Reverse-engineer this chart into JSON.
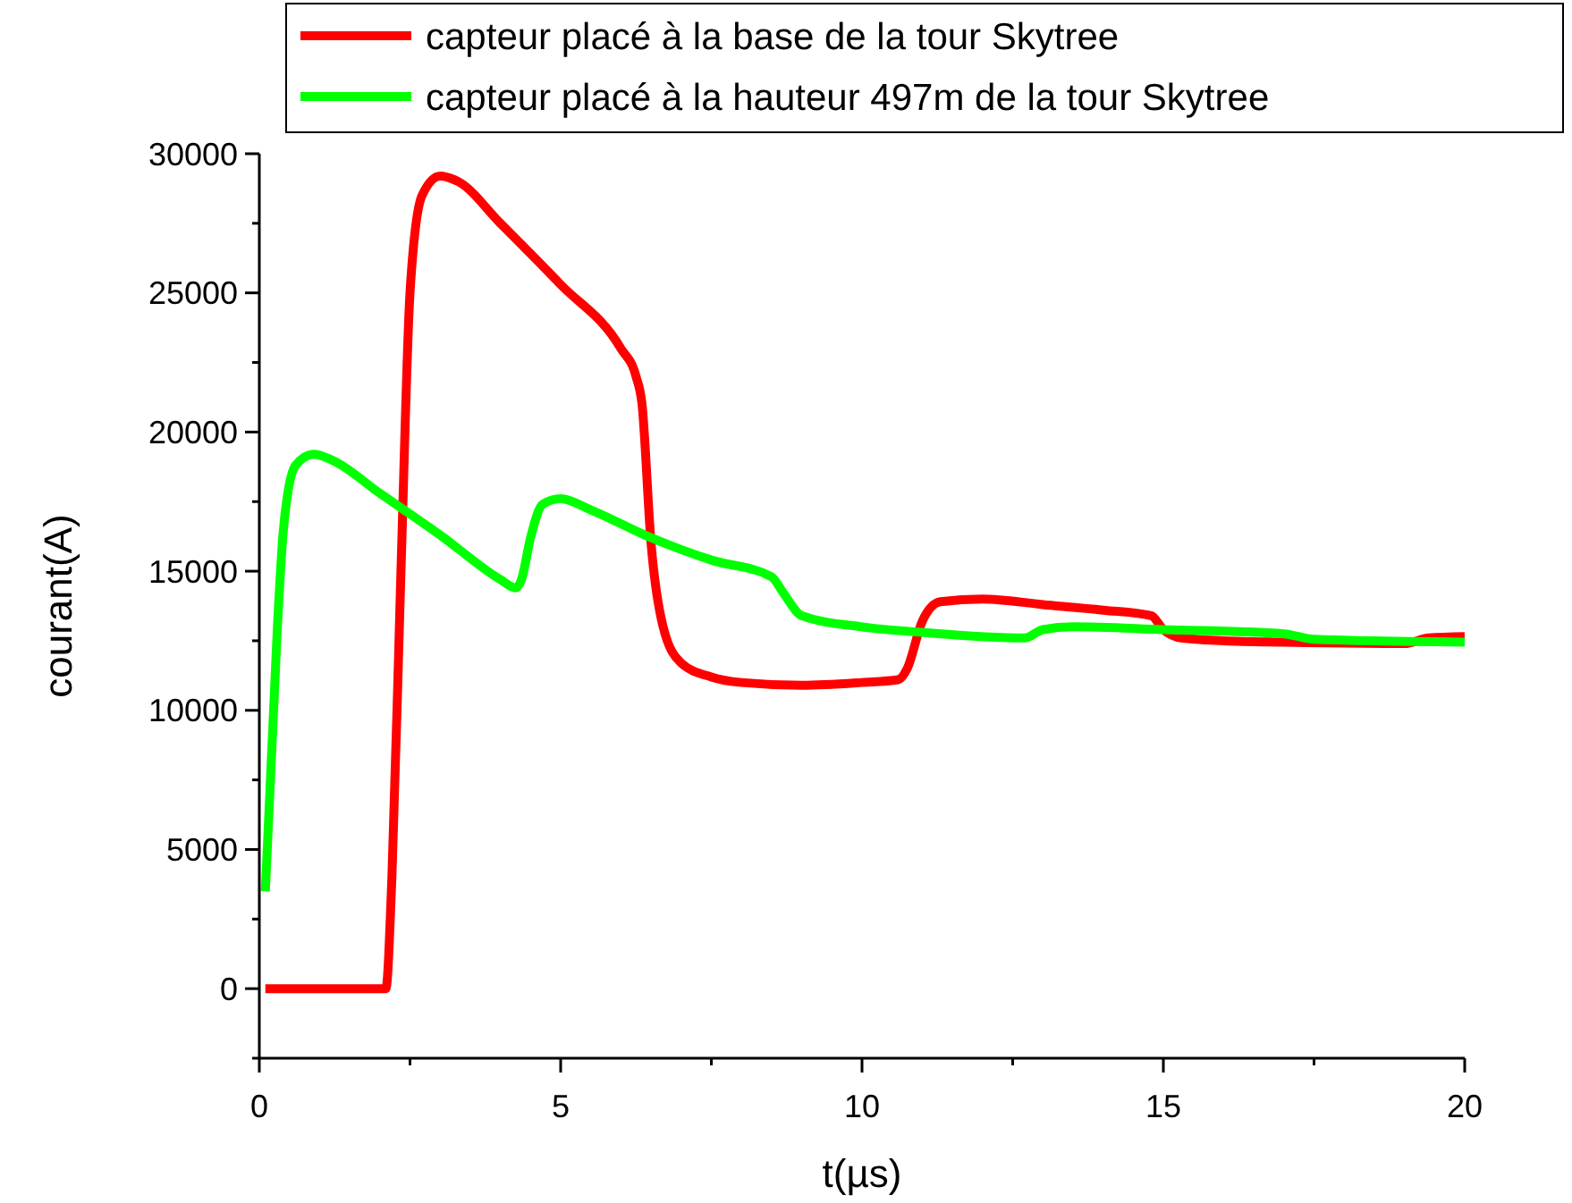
{
  "chart_data": {
    "type": "line",
    "xlabel": "t(µs)",
    "ylabel": "courant(A)",
    "xlim": [
      0,
      20
    ],
    "ylim": [
      -2500,
      30000
    ],
    "xticks": [
      0,
      {
        "value": 2.5,
        "label": null
      },
      5,
      {
        "value": 7.5,
        "label": null
      },
      10,
      {
        "value": 12.5,
        "label": null
      },
      15,
      {
        "value": 17.5,
        "label": null
      },
      20
    ],
    "yticks": [
      {
        "value": -2500,
        "label": null
      },
      0,
      {
        "value": 2500,
        "label": null
      },
      5000,
      {
        "value": 7500,
        "label": null
      },
      10000,
      {
        "value": 12500,
        "label": null
      },
      15000,
      {
        "value": 17500,
        "label": null
      },
      20000,
      {
        "value": 22500,
        "label": null
      },
      25000,
      {
        "value": 27500,
        "label": null
      },
      30000
    ],
    "legend": "top",
    "grid": false,
    "line_style": "solid",
    "marker": "none",
    "series": [
      {
        "name": "capteur placé à la base de la tour Skytree",
        "color": "#ff0000",
        "x": [
          0.1,
          2.1,
          2.2,
          2.35,
          2.5,
          2.7,
          3,
          3.3,
          4,
          5,
          6,
          6.25,
          6.35,
          6.5,
          6.7,
          7,
          7.5,
          8,
          9,
          10,
          10.6,
          10.75,
          11,
          11.3,
          12,
          13,
          14,
          14.8,
          15,
          15.3,
          16,
          17,
          19,
          19.4,
          20
        ],
        "values": [
          0,
          0,
          4000,
          15000,
          25000,
          28500,
          29200,
          29000,
          27500,
          25300,
          23000,
          22000,
          21000,
          16000,
          13000,
          11700,
          11200,
          11000,
          10900,
          11000,
          11100,
          11500,
          13200,
          13900,
          14000,
          13800,
          13600,
          13400,
          12900,
          12600,
          12500,
          12450,
          12400,
          12600,
          12650
        ]
      },
      {
        "name": "capteur placé à la hauteur 497m de la tour Skytree",
        "color": "#00ff00",
        "x": [
          0.1,
          0.3,
          0.4,
          0.6,
          0.9,
          1.2,
          2,
          3,
          4,
          4.25,
          4.35,
          4.5,
          4.7,
          5,
          5.5,
          6.5,
          7.5,
          8.5,
          8.7,
          9,
          10,
          11,
          12.7,
          13,
          13.5,
          15,
          17,
          17.5,
          20
        ],
        "values": [
          3500,
          13000,
          16500,
          18800,
          19200,
          19000,
          17800,
          16300,
          14700,
          14400,
          14700,
          16200,
          17400,
          17600,
          17200,
          16200,
          15400,
          14800,
          14200,
          13400,
          13000,
          12800,
          12600,
          12900,
          13000,
          12900,
          12750,
          12550,
          12450
        ]
      }
    ]
  }
}
